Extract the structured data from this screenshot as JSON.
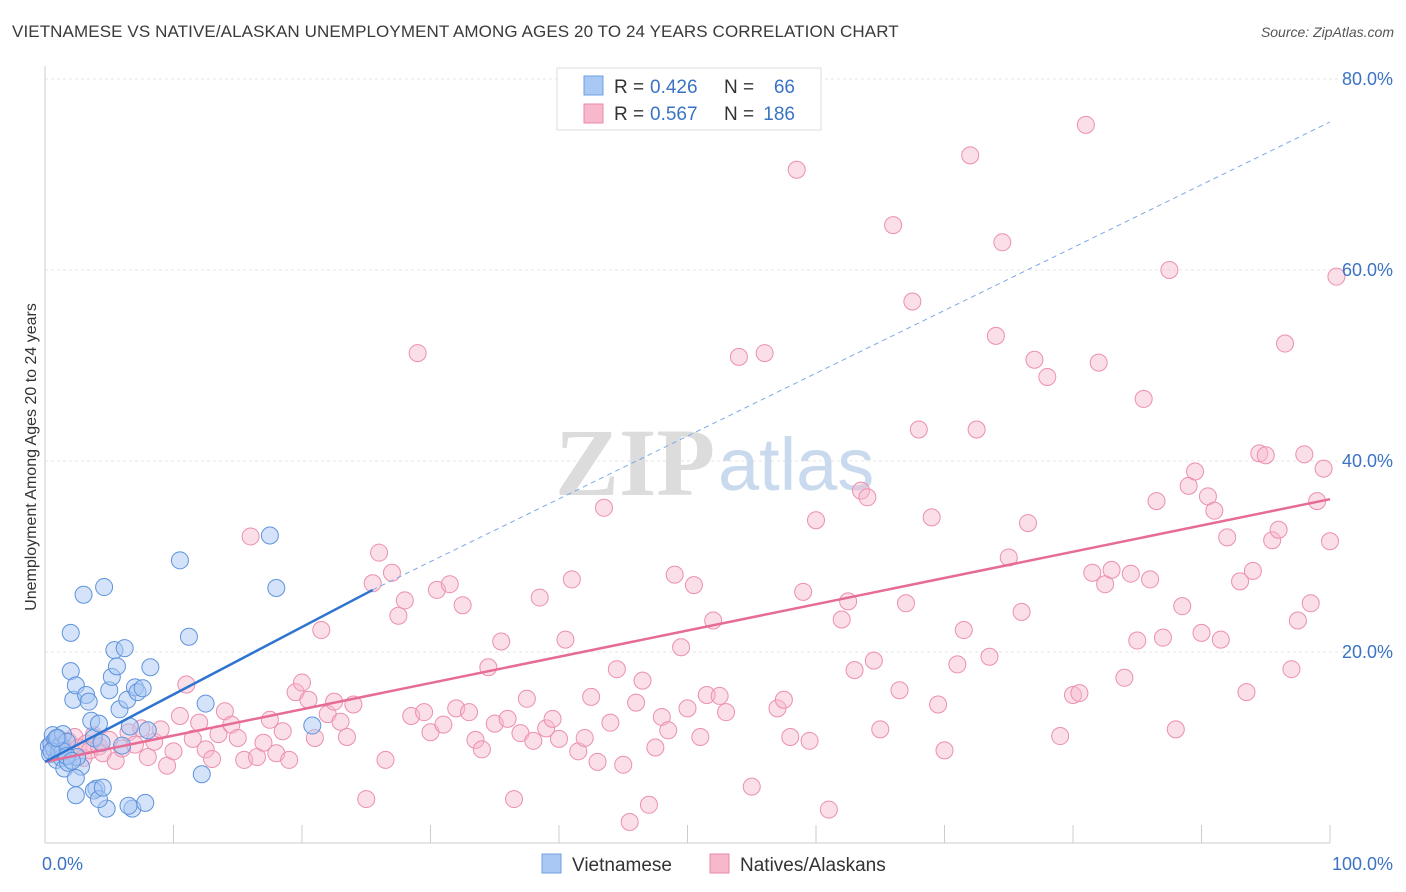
{
  "title": "VIETNAMESE VS NATIVE/ALASKAN UNEMPLOYMENT AMONG AGES 20 TO 24 YEARS CORRELATION CHART",
  "source": "Source: ZipAtlas.com",
  "watermark": {
    "zip": "ZIP",
    "atlas": "atlas"
  },
  "colors": {
    "vietnamese_fill": "#a9c8f3",
    "vietnamese_line": "#2f74d0",
    "natives_fill": "#f7b8cc",
    "natives_line": "#e66c96",
    "tick_text": "#3b73c4"
  },
  "chart_data": {
    "type": "scatter",
    "title": "VIETNAMESE VS NATIVE/ALASKAN UNEMPLOYMENT AMONG AGES 20 TO 24 YEARS CORRELATION CHART",
    "xlabel": "",
    "ylabel": "Unemployment Among Ages 20 to 24 years",
    "xlim": [
      0,
      100
    ],
    "ylim": [
      0,
      80
    ],
    "x_tick_labels": [
      "0.0%",
      "100.0%"
    ],
    "y_ticks": [
      20,
      40,
      60,
      80
    ],
    "y_tick_labels": [
      "20.0%",
      "40.0%",
      "60.0%",
      "80.0%"
    ],
    "grid": true,
    "legend_position": "top-center",
    "legend": [
      {
        "name": "Vietnamese",
        "r_label": "R =",
        "r": "0.426",
        "n_label": "N =",
        "n": "66"
      },
      {
        "name": "Natives/Alaskans",
        "r_label": "R =",
        "r": "0.567",
        "n_label": "N =",
        "n": "186"
      }
    ],
    "series": [
      {
        "name": "Vietnamese",
        "trend": {
          "x0": 0,
          "y0": 8.5,
          "x1": 25.5,
          "y1": 26.5,
          "dash_to_x": 100,
          "dash_to_y": 75.5
        },
        "points": [
          [
            0.3,
            10.1
          ],
          [
            0.4,
            9.3
          ],
          [
            0.5,
            10.4
          ],
          [
            0.6,
            11.3
          ],
          [
            0.7,
            9.9
          ],
          [
            0.8,
            10.8
          ],
          [
            0.9,
            8.7
          ],
          [
            1.0,
            11.0
          ],
          [
            1.1,
            9.6
          ],
          [
            1.2,
            10.2
          ],
          [
            1.3,
            8.9
          ],
          [
            1.4,
            11.4
          ],
          [
            1.5,
            7.8
          ],
          [
            1.6,
            9.2
          ],
          [
            1.7,
            10.6
          ],
          [
            1.8,
            8.4
          ],
          [
            2.0,
            18.0
          ],
          [
            2.2,
            15.0
          ],
          [
            2.4,
            16.5
          ],
          [
            2.0,
            22.0
          ],
          [
            2.8,
            8.0
          ],
          [
            2.5,
            9.0
          ],
          [
            3.2,
            15.5
          ],
          [
            3.4,
            14.8
          ],
          [
            3.6,
            12.8
          ],
          [
            3.8,
            11.0
          ],
          [
            4.0,
            5.7
          ],
          [
            4.2,
            12.5
          ],
          [
            4.4,
            10.5
          ],
          [
            4.6,
            26.8
          ],
          [
            4.8,
            3.6
          ],
          [
            5.0,
            16.0
          ],
          [
            5.2,
            17.4
          ],
          [
            5.4,
            20.2
          ],
          [
            5.6,
            18.5
          ],
          [
            5.8,
            14.0
          ],
          [
            6.0,
            10.2
          ],
          [
            6.2,
            20.4
          ],
          [
            6.4,
            15.0
          ],
          [
            6.6,
            12.2
          ],
          [
            6.8,
            3.6
          ],
          [
            7.0,
            16.3
          ],
          [
            7.2,
            15.8
          ],
          [
            7.6,
            16.2
          ],
          [
            8.0,
            11.8
          ],
          [
            8.2,
            18.4
          ],
          [
            11.2,
            21.6
          ],
          [
            10.5,
            29.6
          ],
          [
            12.5,
            14.6
          ],
          [
            12.2,
            7.2
          ],
          [
            17.5,
            32.2
          ],
          [
            18.0,
            26.7
          ],
          [
            20.8,
            12.3
          ],
          [
            3.0,
            26.0
          ],
          [
            2.4,
            5.0
          ],
          [
            3.8,
            5.5
          ],
          [
            4.2,
            4.6
          ],
          [
            1.4,
            9.6
          ],
          [
            1.7,
            9.1
          ],
          [
            2.1,
            8.6
          ],
          [
            0.5,
            9.6
          ],
          [
            0.9,
            11.0
          ],
          [
            2.4,
            6.8
          ],
          [
            4.5,
            5.8
          ],
          [
            6.5,
            3.9
          ],
          [
            7.8,
            4.2
          ]
        ]
      },
      {
        "name": "Natives/Alaskans",
        "trend": {
          "x0": 0,
          "y0": 8.5,
          "x1": 100,
          "y1": 36.0
        },
        "points": [
          [
            0.5,
            10.2
          ],
          [
            0.8,
            9.5
          ],
          [
            1.0,
            11.0
          ],
          [
            1.3,
            10.5
          ],
          [
            1.5,
            9.8
          ],
          [
            1.8,
            10.7
          ],
          [
            2.0,
            9.2
          ],
          [
            2.3,
            11.1
          ],
          [
            2.6,
            10.0
          ],
          [
            3.0,
            8.9
          ],
          [
            3.2,
            10.4
          ],
          [
            3.5,
            9.7
          ],
          [
            3.8,
            11.3
          ],
          [
            4.2,
            10.1
          ],
          [
            4.5,
            9.4
          ],
          [
            5.0,
            10.8
          ],
          [
            5.5,
            8.6
          ],
          [
            6.0,
            9.9
          ],
          [
            6.5,
            11.6
          ],
          [
            7.0,
            10.3
          ],
          [
            7.5,
            12.0
          ],
          [
            8.0,
            9.0
          ],
          [
            8.5,
            10.6
          ],
          [
            9.0,
            11.9
          ],
          [
            9.5,
            8.1
          ],
          [
            10.0,
            9.6
          ],
          [
            10.5,
            13.3
          ],
          [
            11.0,
            16.6
          ],
          [
            11.5,
            10.9
          ],
          [
            12.0,
            12.6
          ],
          [
            12.5,
            9.8
          ],
          [
            13.0,
            8.8
          ],
          [
            13.5,
            11.4
          ],
          [
            14.0,
            13.8
          ],
          [
            14.5,
            12.4
          ],
          [
            15.0,
            11.0
          ],
          [
            15.5,
            8.7
          ],
          [
            16.0,
            32.1
          ],
          [
            16.5,
            9.0
          ],
          [
            17.0,
            10.5
          ],
          [
            17.5,
            12.9
          ],
          [
            18.0,
            9.4
          ],
          [
            18.5,
            11.7
          ],
          [
            19.0,
            8.7
          ],
          [
            19.5,
            15.8
          ],
          [
            20.0,
            16.8
          ],
          [
            20.5,
            15.0
          ],
          [
            21.0,
            11.0
          ],
          [
            21.5,
            22.3
          ],
          [
            22.0,
            13.5
          ],
          [
            22.5,
            14.8
          ],
          [
            23.0,
            12.7
          ],
          [
            23.5,
            11.1
          ],
          [
            24.0,
            14.5
          ],
          [
            25.0,
            4.6
          ],
          [
            25.5,
            27.2
          ],
          [
            26.0,
            30.4
          ],
          [
            26.5,
            8.7
          ],
          [
            27.0,
            28.3
          ],
          [
            27.5,
            23.8
          ],
          [
            28.0,
            25.4
          ],
          [
            28.5,
            13.3
          ],
          [
            29.0,
            51.3
          ],
          [
            29.5,
            13.7
          ],
          [
            30.0,
            11.6
          ],
          [
            30.5,
            26.5
          ],
          [
            31.0,
            12.4
          ],
          [
            31.5,
            27.1
          ],
          [
            32.0,
            14.1
          ],
          [
            32.5,
            24.9
          ],
          [
            33.0,
            13.7
          ],
          [
            33.5,
            10.8
          ],
          [
            34.0,
            9.8
          ],
          [
            34.5,
            18.4
          ],
          [
            35.0,
            12.5
          ],
          [
            35.5,
            21.1
          ],
          [
            36.0,
            13.0
          ],
          [
            36.5,
            4.6
          ],
          [
            37.0,
            11.5
          ],
          [
            37.5,
            15.1
          ],
          [
            38.0,
            10.7
          ],
          [
            38.5,
            25.7
          ],
          [
            39.0,
            12.0
          ],
          [
            39.5,
            13.0
          ],
          [
            40.0,
            10.9
          ],
          [
            40.5,
            21.3
          ],
          [
            41.0,
            27.6
          ],
          [
            41.5,
            9.6
          ],
          [
            42.0,
            11.0
          ],
          [
            42.5,
            15.3
          ],
          [
            43.0,
            8.5
          ],
          [
            43.5,
            35.1
          ],
          [
            44.0,
            12.6
          ],
          [
            44.5,
            18.2
          ],
          [
            45.0,
            8.2
          ],
          [
            45.5,
            2.2
          ],
          [
            46.0,
            14.7
          ],
          [
            46.5,
            17.0
          ],
          [
            47.0,
            4.0
          ],
          [
            47.5,
            10.0
          ],
          [
            48.0,
            13.2
          ],
          [
            48.5,
            11.8
          ],
          [
            49.0,
            28.1
          ],
          [
            49.5,
            20.5
          ],
          [
            50.0,
            14.1
          ],
          [
            50.5,
            27.0
          ],
          [
            51.0,
            11.1
          ],
          [
            51.5,
            15.5
          ],
          [
            52.0,
            23.3
          ],
          [
            52.5,
            15.4
          ],
          [
            53.0,
            13.7
          ],
          [
            54.0,
            50.9
          ],
          [
            55.0,
            5.9
          ],
          [
            56.0,
            51.3
          ],
          [
            57.0,
            14.1
          ],
          [
            57.5,
            15.0
          ],
          [
            58.0,
            11.1
          ],
          [
            58.5,
            70.5
          ],
          [
            59.0,
            26.3
          ],
          [
            59.5,
            10.7
          ],
          [
            60.0,
            33.8
          ],
          [
            61.0,
            3.5
          ],
          [
            62.0,
            23.4
          ],
          [
            62.5,
            25.3
          ],
          [
            63.0,
            18.1
          ],
          [
            63.5,
            36.9
          ],
          [
            64.0,
            36.2
          ],
          [
            64.5,
            19.1
          ],
          [
            65.0,
            11.9
          ],
          [
            66.0,
            64.7
          ],
          [
            66.5,
            16.0
          ],
          [
            67.0,
            25.1
          ],
          [
            67.5,
            56.7
          ],
          [
            68.0,
            43.3
          ],
          [
            69.0,
            34.1
          ],
          [
            69.5,
            14.5
          ],
          [
            70.0,
            9.7
          ],
          [
            71.0,
            18.7
          ],
          [
            71.5,
            22.3
          ],
          [
            72.0,
            72.0
          ],
          [
            72.5,
            43.3
          ],
          [
            73.5,
            19.5
          ],
          [
            74.0,
            53.1
          ],
          [
            74.5,
            62.9
          ],
          [
            75.0,
            29.9
          ],
          [
            76.0,
            24.2
          ],
          [
            76.5,
            33.5
          ],
          [
            77.0,
            50.6
          ],
          [
            78.0,
            48.8
          ],
          [
            79.0,
            11.2
          ],
          [
            80.0,
            15.5
          ],
          [
            80.5,
            15.7
          ],
          [
            81.0,
            75.2
          ],
          [
            81.5,
            28.3
          ],
          [
            82.0,
            50.3
          ],
          [
            82.5,
            27.1
          ],
          [
            83.0,
            28.6
          ],
          [
            84.0,
            17.3
          ],
          [
            84.5,
            28.2
          ],
          [
            85.0,
            21.2
          ],
          [
            85.5,
            46.5
          ],
          [
            86.0,
            27.6
          ],
          [
            86.5,
            35.8
          ],
          [
            87.0,
            21.5
          ],
          [
            87.5,
            60.0
          ],
          [
            88.0,
            11.9
          ],
          [
            88.5,
            24.8
          ],
          [
            89.0,
            37.4
          ],
          [
            89.5,
            38.9
          ],
          [
            90.0,
            22.0
          ],
          [
            90.5,
            36.3
          ],
          [
            91.0,
            34.8
          ],
          [
            91.5,
            21.3
          ],
          [
            92.0,
            32.0
          ],
          [
            93.0,
            27.4
          ],
          [
            93.5,
            15.8
          ],
          [
            94.0,
            28.5
          ],
          [
            94.5,
            40.8
          ],
          [
            95.0,
            40.6
          ],
          [
            95.5,
            31.7
          ],
          [
            96.0,
            32.8
          ],
          [
            96.5,
            52.3
          ],
          [
            97.0,
            18.2
          ],
          [
            97.5,
            23.3
          ],
          [
            98.0,
            40.7
          ],
          [
            98.5,
            25.1
          ],
          [
            99.0,
            35.8
          ],
          [
            99.5,
            39.2
          ],
          [
            100.0,
            31.6
          ],
          [
            100.5,
            59.3
          ]
        ]
      }
    ]
  }
}
